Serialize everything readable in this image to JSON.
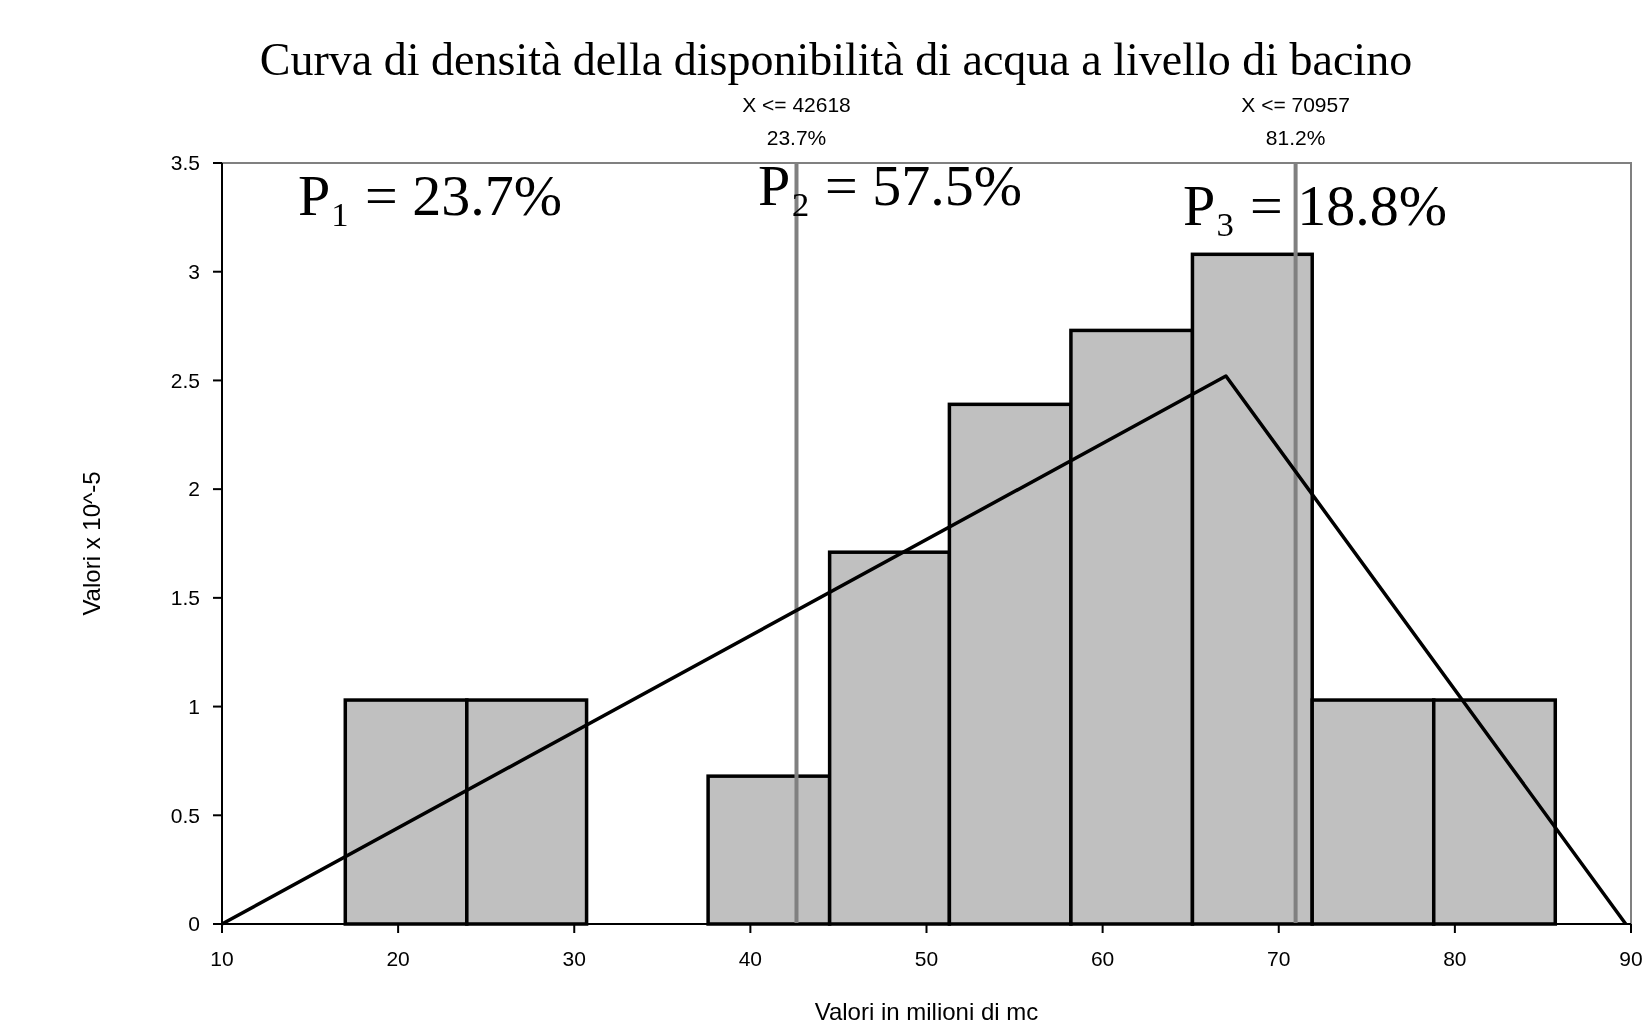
{
  "chart_data": {
    "type": "histogram",
    "title": "Curva di densità della disponibilità di acqua a livello di bacino",
    "xlabel": "Valori in milioni di mc",
    "ylabel": "Valori x 10^-5",
    "bins": [
      17,
      23.9,
      30.7,
      37.6,
      44.5,
      51.3,
      58.2,
      65.1,
      71.9,
      78.8,
      85.7
    ],
    "values": [
      1.03,
      1.03,
      0,
      0.68,
      1.71,
      2.39,
      2.73,
      3.08,
      1.03,
      1.03
    ],
    "color": "#c0c0c0",
    "series": [
      {
        "type": "line",
        "x": [
          10,
          67,
          89.7
        ],
        "values": [
          0,
          2.52,
          0
        ],
        "color": "#000000"
      }
    ],
    "xlim": [
      10,
      90
    ],
    "xticks": [
      10,
      20,
      30,
      40,
      50,
      60,
      70,
      80,
      90
    ],
    "ylim": [
      0,
      3.5
    ],
    "yticks": [
      0,
      0.5,
      1,
      1.5,
      2,
      2.5,
      3,
      3.5
    ],
    "ref_lines": [
      {
        "axis": "x",
        "value": 42.618,
        "label": "X <= 42618\n23.7%",
        "color": "#808080"
      },
      {
        "axis": "x",
        "value": 70.957,
        "label": "X <= 70957\n81.2%",
        "color": "#808080"
      }
    ],
    "annotations": [
      "P₁ = 23.7%",
      "P₂ = 57.5%",
      "P₃ = 18.8%"
    ],
    "grid": false
  }
}
